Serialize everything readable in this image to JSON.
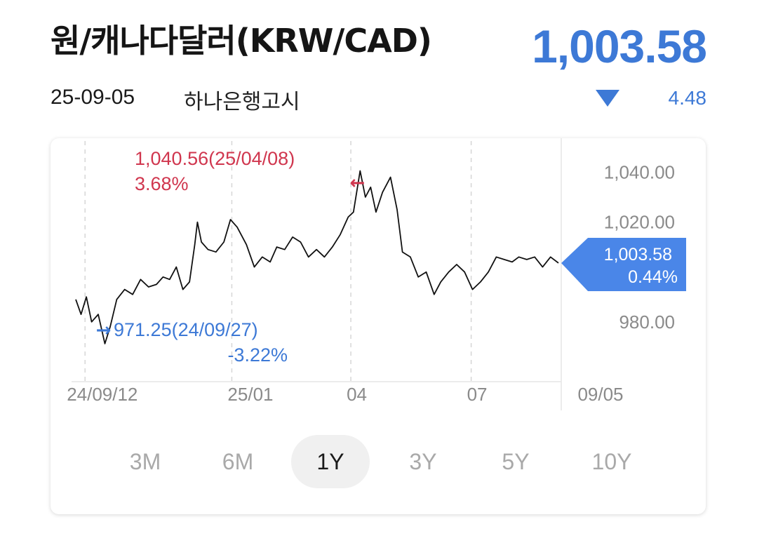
{
  "header": {
    "title": "원/캐나다달러(KRW/CAD)",
    "price": "1,003.58",
    "date": "25-09-05",
    "source": "하나은행고시",
    "change": "4.48",
    "direction_icon": "triangle-down-icon",
    "accent_color": "#3d79d6"
  },
  "range_tabs": [
    {
      "label": "3M",
      "active": false
    },
    {
      "label": "6M",
      "active": false
    },
    {
      "label": "1Y",
      "active": true
    },
    {
      "label": "3Y",
      "active": false
    },
    {
      "label": "5Y",
      "active": false
    },
    {
      "label": "10Y",
      "active": false
    }
  ],
  "chart_data": {
    "type": "line",
    "x_range": [
      "24/09/05",
      "25/09/05"
    ],
    "ylim": [
      958,
      1048
    ],
    "y_ticks": [
      {
        "value": 1040,
        "label": "1,040.00"
      },
      {
        "value": 1020,
        "label": "1,020.00"
      },
      {
        "value": 980,
        "label": "980.00"
      }
    ],
    "x_ticks": [
      {
        "date": "24/09/12",
        "label": "24/09/12"
      },
      {
        "date": "25/01/01",
        "label": "25/01"
      },
      {
        "date": "25/04/01",
        "label": "04"
      },
      {
        "date": "25/07/01",
        "label": "07"
      },
      {
        "date": "25/09/05",
        "label": "09/05"
      }
    ],
    "grid": "vertical-dashed",
    "line_color": "#111111",
    "series": [
      {
        "points": [
          [
            "24/09/05",
            989
          ],
          [
            "24/09/09",
            983
          ],
          [
            "24/09/13",
            990
          ],
          [
            "24/09/17",
            980
          ],
          [
            "24/09/22",
            983
          ],
          [
            "24/09/27",
            971.25
          ],
          [
            "24/10/01",
            978
          ],
          [
            "24/10/06",
            989
          ],
          [
            "24/10/12",
            993
          ],
          [
            "24/10/18",
            991
          ],
          [
            "24/10/24",
            997
          ],
          [
            "24/10/30",
            994
          ],
          [
            "24/11/05",
            995
          ],
          [
            "24/11/10",
            998
          ],
          [
            "24/11/15",
            997
          ],
          [
            "24/11/20",
            1002
          ],
          [
            "24/11/25",
            993
          ],
          [
            "24/11/30",
            996
          ],
          [
            "24/12/04",
            1011
          ],
          [
            "24/12/06",
            1020
          ],
          [
            "24/12/09",
            1012
          ],
          [
            "24/12/14",
            1009
          ],
          [
            "24/12/20",
            1008
          ],
          [
            "24/12/26",
            1012
          ],
          [
            "24/12/31",
            1021
          ],
          [
            "25/01/05",
            1018
          ],
          [
            "25/01/12",
            1011
          ],
          [
            "25/01/18",
            1002
          ],
          [
            "25/01/24",
            1006
          ],
          [
            "25/01/30",
            1004
          ],
          [
            "25/02/04",
            1010
          ],
          [
            "25/02/10",
            1009
          ],
          [
            "25/02/16",
            1014
          ],
          [
            "25/02/22",
            1012
          ],
          [
            "25/02/28",
            1006
          ],
          [
            "25/03/06",
            1009
          ],
          [
            "25/03/12",
            1006
          ],
          [
            "25/03/18",
            1010
          ],
          [
            "25/03/24",
            1015
          ],
          [
            "25/03/30",
            1022
          ],
          [
            "25/04/03",
            1024
          ],
          [
            "25/04/08",
            1040.56
          ],
          [
            "25/04/12",
            1030
          ],
          [
            "25/04/16",
            1034
          ],
          [
            "25/04/20",
            1024
          ],
          [
            "25/04/25",
            1032
          ],
          [
            "25/05/01",
            1038
          ],
          [
            "25/05/06",
            1025
          ],
          [
            "25/05/10",
            1008
          ],
          [
            "25/05/16",
            1006
          ],
          [
            "25/05/22",
            998
          ],
          [
            "25/05/28",
            1000
          ],
          [
            "25/06/03",
            991
          ],
          [
            "25/06/08",
            996
          ],
          [
            "25/06/14",
            1000
          ],
          [
            "25/06/20",
            1003
          ],
          [
            "25/06/26",
            1000
          ],
          [
            "25/07/02",
            993
          ],
          [
            "25/07/08",
            996
          ],
          [
            "25/07/14",
            1000
          ],
          [
            "25/07/20",
            1006
          ],
          [
            "25/07/26",
            1005
          ],
          [
            "25/08/01",
            1004
          ],
          [
            "25/08/06",
            1006
          ],
          [
            "25/08/12",
            1005
          ],
          [
            "25/08/18",
            1006
          ],
          [
            "25/08/24",
            1002
          ],
          [
            "25/08/30",
            1006
          ],
          [
            "25/09/05",
            1003.58
          ]
        ]
      }
    ],
    "annotations": {
      "high": {
        "date": "25/04/08",
        "value": 1040.56,
        "label": "1,040.56(25/04/08)",
        "pct": "3.68%",
        "arrow": "←",
        "color": "#d0364e"
      },
      "low": {
        "date": "24/09/27",
        "value": 971.25,
        "label": "971.25(24/09/27)",
        "pct": "-3.22%",
        "arrow": "→",
        "color": "#3d79d6"
      },
      "current": {
        "value": 1003.58,
        "label": "1,003.58",
        "pct": "0.44%",
        "color": "#4a86e8"
      }
    }
  }
}
